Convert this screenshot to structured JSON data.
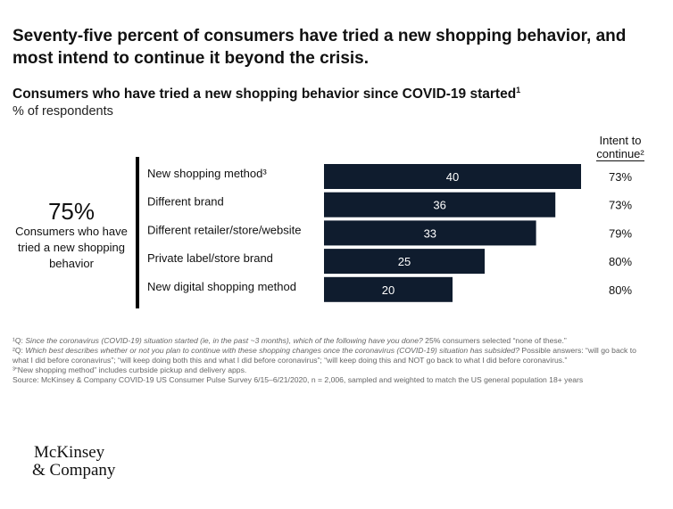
{
  "headline": "Seventy-five percent of consumers have tried a new shopping behavior, and most intend to continue it beyond the crisis.",
  "subtitle": "Consumers who have tried a new shopping behavior since COVID-19 started",
  "subtitle_marker": "1",
  "unit_label": "% of respondents",
  "intent_header": {
    "line1": "Intent to",
    "line2": "continue²"
  },
  "callout": {
    "value": "75%",
    "text": "Consumers who have tried a new shopping behavior"
  },
  "chart_data": {
    "type": "bar",
    "orientation": "horizontal",
    "categories": [
      "New shopping method³",
      "Different brand",
      "Different retailer/store/website",
      "Private label/store brand",
      "New digital shopping method"
    ],
    "values": [
      40,
      36,
      33,
      25,
      20
    ],
    "value_labels": [
      "40",
      "36",
      "33",
      "25",
      "20"
    ],
    "intent_to_continue": [
      "73%",
      "73%",
      "79%",
      "80%",
      "80%"
    ],
    "xlim": [
      0,
      45
    ],
    "bar_color": "#0f1c2e",
    "label_color": "#ffffff"
  },
  "footnotes": [
    {
      "marker": "¹Q: ",
      "italic": "Since the coronavirus (COVID-19) situation started (ie, in the past ~3 months), which of the following have you done?",
      "rest": " 25% consumers selected “none of these.”"
    },
    {
      "marker": "²Q: ",
      "italic": "Which best describes whether or not you plan to continue with these shopping changes once the coronavirus (COVID-19) situation has subsided?",
      "rest": " Possible answers: “will go back to what I did before coronavirus”; “will keep doing both this and what I did before coronavirus”; “will keep doing this and NOT go back to what I did before coronavirus.”"
    },
    {
      "marker": "³",
      "italic": "",
      "rest": "“New shopping method” includes curbside pickup and delivery apps."
    },
    {
      "marker": "",
      "italic": "",
      "rest": "Source: McKinsey & Company COVID-19 US Consumer Pulse Survey 6/15–6/21/2020, n = 2,006, sampled and weighted to match the US general population 18+ years"
    }
  ],
  "logo": {
    "line1": "McKinsey",
    "line2": "& Company"
  }
}
